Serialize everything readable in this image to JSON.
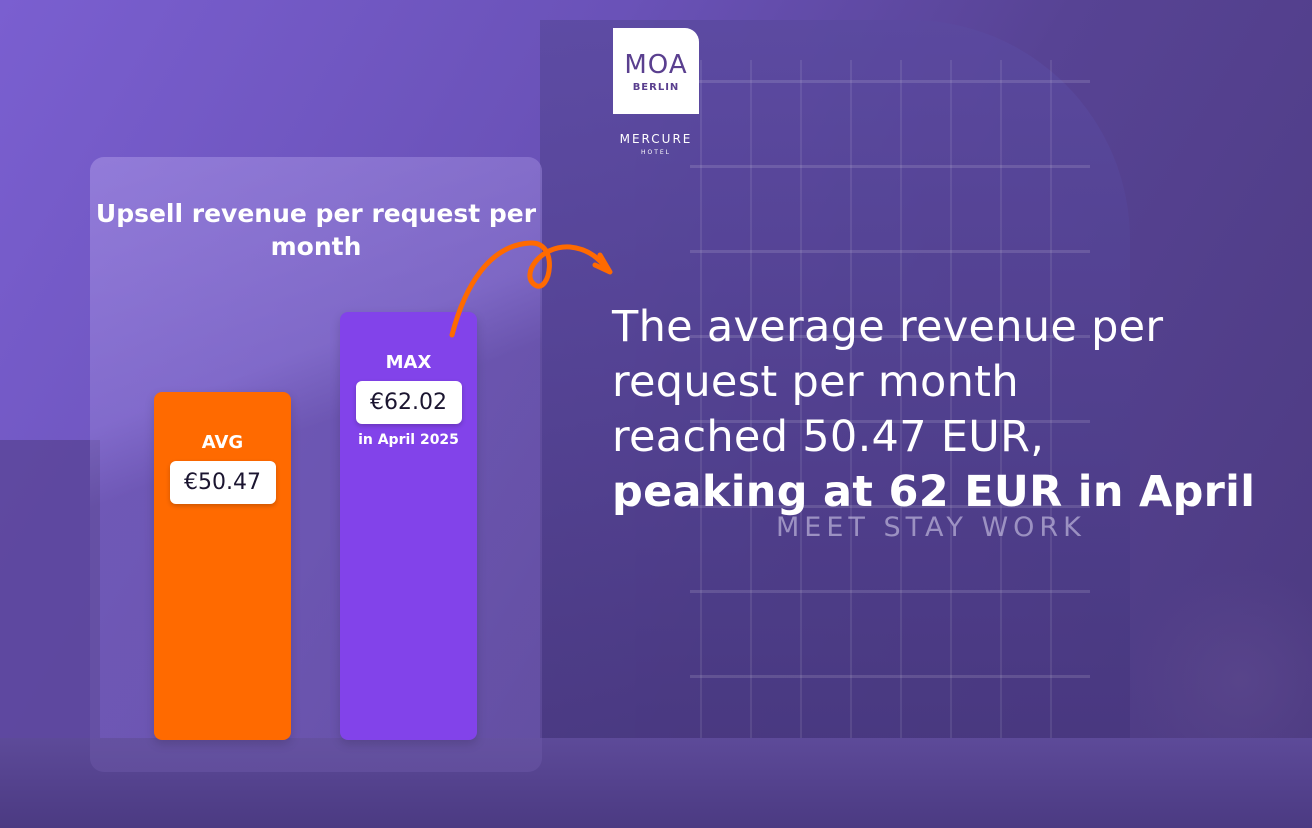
{
  "logo": {
    "name": "MOA",
    "city": "BERLIN",
    "brand": "MERCURE",
    "brand_sub": "HOTEL"
  },
  "photo_sign": "MEET STAY WORK",
  "chart_data": {
    "type": "bar",
    "title": "Upsell revenue per request per month",
    "categories": [
      "AVG",
      "MAX"
    ],
    "values": [
      50.47,
      62.02
    ],
    "value_labels": [
      "€50.47",
      "€62.02"
    ],
    "annotations": [
      "",
      "in April 2025"
    ],
    "colors": [
      "#ff6a00",
      "#8243ea"
    ],
    "unit": "EUR"
  },
  "headline": {
    "lines": [
      "The average revenue per",
      "request per month",
      "reached 50.47 EUR,"
    ],
    "bold": "peaking at 62 EUR in April"
  },
  "colors": {
    "accent_orange": "#ff6a00",
    "accent_purple": "#8243ea"
  }
}
